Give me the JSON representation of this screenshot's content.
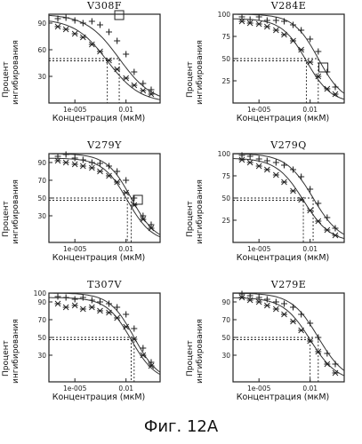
{
  "figure_caption": "Фиг. 12A",
  "chart_data": [
    {
      "type": "scatter",
      "title": "V308F",
      "ylabel": "Процент ингибирования",
      "xlabel": "Концентрация (мкМ)",
      "x_scale": "log",
      "xlim": [
        3e-07,
        1
      ],
      "ylim": [
        0,
        100
      ],
      "yticks": [
        30,
        60,
        90
      ],
      "ytick_labels": [
        "30",
        "60",
        "90"
      ],
      "xticks": [
        1e-05,
        0.01
      ],
      "xtick_labels": [
        "1e-005",
        "0.01"
      ],
      "series": [
        {
          "marker": "plus",
          "ic50": 0.004,
          "hill": 0.45,
          "top": 100,
          "bottom": 0,
          "x": [
            1e-06,
            3e-06,
            1e-05,
            3e-05,
            0.0001,
            0.0003,
            0.001,
            0.003,
            0.01,
            0.03,
            0.1,
            0.3
          ],
          "y": [
            95,
            96,
            93,
            90,
            92,
            88,
            80,
            70,
            55,
            35,
            22,
            15
          ]
        },
        {
          "marker": "star",
          "ic50": 0.0008,
          "hill": 0.45,
          "top": 95,
          "bottom": 0,
          "x": [
            1e-06,
            3e-06,
            1e-05,
            3e-05,
            0.0001,
            0.0003,
            0.001,
            0.003,
            0.01,
            0.03,
            0.1,
            0.3
          ],
          "y": [
            86,
            83,
            78,
            74,
            66,
            58,
            48,
            38,
            28,
            20,
            14,
            10
          ]
        }
      ],
      "annotations": [
        {
          "type": "box",
          "x": 0.004,
          "y": 99
        },
        {
          "type": "dashed-crosshair",
          "series": 0
        },
        {
          "type": "dashed-crosshair",
          "series": 1
        }
      ]
    },
    {
      "type": "scatter",
      "title": "V284E",
      "ylabel": "Процент ингибирования",
      "xlabel": "Концентрация (мкМ)",
      "x_scale": "log",
      "xlim": [
        3e-07,
        1
      ],
      "ylim": [
        0,
        100
      ],
      "yticks": [
        25,
        50,
        75,
        100
      ],
      "ytick_labels": [
        "25",
        "50",
        "75",
        "100"
      ],
      "xticks": [
        1e-05,
        0.01
      ],
      "xtick_labels": [
        "1e-005",
        "0.01"
      ],
      "series": [
        {
          "marker": "plus",
          "ic50": 0.03,
          "hill": 0.6,
          "top": 100,
          "bottom": 0,
          "x": [
            1e-06,
            3e-06,
            1e-05,
            3e-05,
            0.0001,
            0.0003,
            0.001,
            0.003,
            0.01,
            0.03,
            0.1,
            0.3
          ],
          "y": [
            97,
            94,
            97,
            93,
            93,
            92,
            88,
            82,
            72,
            58,
            35,
            18
          ]
        },
        {
          "marker": "star",
          "ic50": 0.006,
          "hill": 0.6,
          "top": 95,
          "bottom": 0,
          "x": [
            1e-06,
            3e-06,
            1e-05,
            3e-05,
            0.0001,
            0.0003,
            0.001,
            0.003,
            0.01,
            0.03,
            0.1,
            0.3
          ],
          "y": [
            92,
            90,
            89,
            86,
            82,
            77,
            70,
            60,
            46,
            30,
            16,
            10
          ]
        }
      ],
      "annotations": [
        {
          "type": "box",
          "x": 0.06,
          "y": 40
        },
        {
          "type": "dashed-crosshair",
          "series": 0
        },
        {
          "type": "dashed-crosshair",
          "series": 1
        }
      ]
    },
    {
      "type": "scatter",
      "title": "V279Y",
      "ylabel": "Процент ингибирования",
      "xlabel": "Концентрация (мкМ)",
      "x_scale": "log",
      "xlim": [
        3e-07,
        1
      ],
      "ylim": [
        0,
        100
      ],
      "yticks": [
        30,
        50,
        70,
        90
      ],
      "ytick_labels": [
        "30",
        "50",
        "70",
        "90"
      ],
      "xticks": [
        1e-05,
        0.01
      ],
      "xtick_labels": [
        "1e-005",
        "0.01"
      ],
      "series": [
        {
          "marker": "plus",
          "ic50": 0.02,
          "hill": 0.6,
          "top": 100,
          "bottom": 0,
          "x": [
            1e-06,
            3e-06,
            1e-05,
            3e-05,
            0.0001,
            0.0003,
            0.001,
            0.003,
            0.01,
            0.03,
            0.1,
            0.3
          ],
          "y": [
            97,
            99,
            95,
            93,
            90,
            89,
            86,
            80,
            70,
            50,
            30,
            20
          ]
        },
        {
          "marker": "star",
          "ic50": 0.012,
          "hill": 0.6,
          "top": 95,
          "bottom": 0,
          "x": [
            1e-06,
            3e-06,
            1e-05,
            3e-05,
            0.0001,
            0.0003,
            0.001,
            0.003,
            0.01,
            0.03,
            0.1,
            0.3
          ],
          "y": [
            92,
            90,
            88,
            86,
            84,
            80,
            75,
            68,
            56,
            42,
            26,
            16
          ]
        }
      ],
      "annotations": [
        {
          "type": "box",
          "x": 0.05,
          "y": 48
        },
        {
          "type": "dashed-crosshair",
          "series": 0
        },
        {
          "type": "dashed-crosshair",
          "series": 1
        }
      ]
    },
    {
      "type": "scatter",
      "title": "V279Q",
      "ylabel": "Процент ингибирования",
      "xlabel": "Концентрация (мкМ)",
      "x_scale": "log",
      "xlim": [
        3e-07,
        1
      ],
      "ylim": [
        0,
        100
      ],
      "yticks": [
        25,
        50,
        75,
        100
      ],
      "ytick_labels": [
        "25",
        "50",
        "75",
        "100"
      ],
      "xticks": [
        1e-05,
        0.01
      ],
      "xtick_labels": [
        "1e-005",
        "0.01"
      ],
      "series": [
        {
          "marker": "plus",
          "ic50": 0.015,
          "hill": 0.55,
          "top": 100,
          "bottom": 0,
          "x": [
            1e-06,
            3e-06,
            1e-05,
            3e-05,
            0.0001,
            0.0003,
            0.001,
            0.003,
            0.01,
            0.03,
            0.1,
            0.3
          ],
          "y": [
            98,
            97,
            94,
            92,
            90,
            87,
            82,
            74,
            60,
            44,
            28,
            16
          ]
        },
        {
          "marker": "star",
          "ic50": 0.004,
          "hill": 0.55,
          "top": 95,
          "bottom": 0,
          "x": [
            1e-06,
            3e-06,
            1e-05,
            3e-05,
            0.0001,
            0.0003,
            0.001,
            0.003,
            0.01,
            0.03,
            0.1,
            0.3
          ],
          "y": [
            93,
            90,
            86,
            82,
            76,
            68,
            58,
            48,
            36,
            24,
            14,
            8
          ]
        }
      ],
      "annotations": [
        {
          "type": "dashed-crosshair",
          "series": 0
        },
        {
          "type": "dashed-crosshair",
          "series": 1
        }
      ]
    },
    {
      "type": "scatter",
      "title": "T307V",
      "ylabel": "Процент ингибирования",
      "xlabel": "Концентрация (мкМ)",
      "x_scale": "log",
      "xlim": [
        3e-07,
        1
      ],
      "ylim": [
        0,
        100
      ],
      "yticks": [
        30,
        50,
        70,
        90,
        100
      ],
      "ytick_labels": [
        "30",
        "50",
        "70",
        "90",
        "100"
      ],
      "xticks": [
        1e-05,
        0.01
      ],
      "xtick_labels": [
        "1e-005",
        "0.01"
      ],
      "series": [
        {
          "marker": "plus",
          "ic50": 0.03,
          "hill": 0.6,
          "top": 100,
          "bottom": 0,
          "x": [
            1e-06,
            3e-06,
            1e-05,
            3e-05,
            0.0001,
            0.0003,
            0.001,
            0.003,
            0.01,
            0.03,
            0.1,
            0.3
          ],
          "y": [
            96,
            95,
            93,
            95,
            92,
            90,
            88,
            84,
            76,
            60,
            38,
            22
          ]
        },
        {
          "marker": "star",
          "ic50": 0.02,
          "hill": 0.6,
          "top": 95,
          "bottom": 0,
          "x": [
            1e-06,
            3e-06,
            1e-05,
            3e-05,
            0.0001,
            0.0003,
            0.001,
            0.003,
            0.01,
            0.03,
            0.1,
            0.3
          ],
          "y": [
            88,
            84,
            86,
            82,
            84,
            80,
            78,
            72,
            62,
            48,
            30,
            18
          ]
        }
      ],
      "annotations": [
        {
          "type": "dashed-crosshair",
          "series": 0
        },
        {
          "type": "dashed-crosshair",
          "series": 1
        }
      ]
    },
    {
      "type": "scatter",
      "title": "V279E",
      "ylabel": "Процент ингибирования",
      "xlabel": "Концентрация (мкМ)",
      "x_scale": "log",
      "xlim": [
        3e-07,
        1
      ],
      "ylim": [
        0,
        100
      ],
      "yticks": [
        30,
        50,
        70,
        90
      ],
      "ytick_labels": [
        "30",
        "50",
        "70",
        "90"
      ],
      "xticks": [
        1e-05,
        0.01
      ],
      "xtick_labels": [
        "1e-005",
        "0.01"
      ],
      "series": [
        {
          "marker": "plus",
          "ic50": 0.03,
          "hill": 0.55,
          "top": 100,
          "bottom": 0,
          "x": [
            1e-06,
            3e-06,
            1e-05,
            3e-05,
            0.0001,
            0.0003,
            0.001,
            0.003,
            0.01,
            0.03,
            0.1,
            0.3
          ],
          "y": [
            99,
            97,
            95,
            93,
            90,
            88,
            84,
            76,
            66,
            50,
            32,
            20
          ]
        },
        {
          "marker": "star",
          "ic50": 0.01,
          "hill": 0.55,
          "top": 95,
          "bottom": 0,
          "x": [
            1e-06,
            3e-06,
            1e-05,
            3e-05,
            0.0001,
            0.0003,
            0.001,
            0.003,
            0.01,
            0.03,
            0.1,
            0.3
          ],
          "y": [
            95,
            92,
            90,
            86,
            82,
            76,
            68,
            58,
            46,
            34,
            20,
            10
          ]
        }
      ],
      "annotations": [
        {
          "type": "dashed-crosshair",
          "series": 0
        },
        {
          "type": "dashed-crosshair",
          "series": 1
        }
      ]
    }
  ]
}
